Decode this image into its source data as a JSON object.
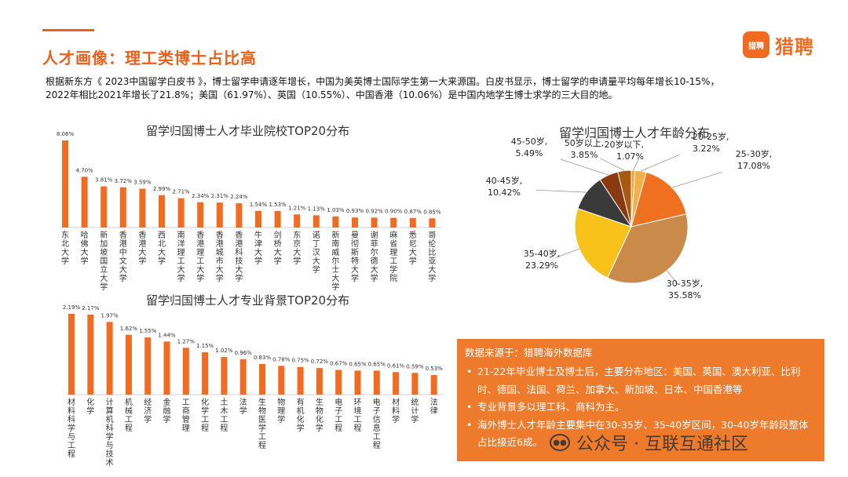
{
  "header": {
    "title": "人才画像：理工类博士占比高",
    "logo_badge": "猎聘",
    "logo_text": "猎聘"
  },
  "intro": {
    "line1": "根据新东方《 2023中国留学白皮书 》，博士留学申请逐年增长，中国为美英博士国际学生第一大来源国。白皮书显示，博士留学的申请量平均每年增长10-15%，",
    "line2": "2022年相比2021年增长了21.8%；美国（61.97%）、英国（10.55%）、中国香港（10.06%）是中国内地学生博士求学的三大目的地。"
  },
  "info_box": {
    "source": "数据来源于：猎聘海外数据库",
    "bullets": [
      "21-22年毕业博士及博士后，主要分布地区：美国、英国、澳大利亚、比利时、德国、法国、荷兰、加拿大、新加坡、日本、中国香港等",
      "专业背景多以理工科、商科为主。",
      "海外博士人才年龄主要集中在30-35岁、35-40岁区间，30-40岁年龄段整体占比接近6成。"
    ]
  },
  "watermark": {
    "icon": "wechat-icon",
    "text": "公众号 · 互联互通社区"
  },
  "colors": {
    "accent": "#e8601c",
    "bar": "#f26b21",
    "box": "#ee7a2c"
  },
  "chart_data": [
    {
      "type": "bar",
      "title": "留学归国博士人才毕业院校TOP20分布",
      "categories": [
        "东北大学",
        "哈佛大学",
        "新加坡国立大学",
        "香港中文大学",
        "香港大学",
        "西北大学",
        "南洋理工大学",
        "香港理工大学",
        "香港城市大学",
        "香港科技大学",
        "牛津大学",
        "剑桥大学",
        "东京大学",
        "诺丁汉大学",
        "新南威尔士大学",
        "曼彻斯特大学",
        "谢菲尔德大学",
        "麻省理工学院",
        "悉尼大学",
        "哥伦比亚大学"
      ],
      "values": [
        8.06,
        4.7,
        3.81,
        3.72,
        3.59,
        2.99,
        2.71,
        2.34,
        2.31,
        2.24,
        1.54,
        1.53,
        1.21,
        1.13,
        1.03,
        0.93,
        0.92,
        0.9,
        0.87,
        0.85
      ],
      "labels": [
        "8.06%",
        "4.70%",
        "3.81%",
        "3.72%",
        "3.59%",
        "2.99%",
        "2.71%",
        "2.34%",
        "2.31%",
        "2.24%",
        "1.54%",
        "1.53%",
        "1.21%",
        "1.13%",
        "1.03%",
        "0.93%",
        "0.92%",
        "0.90%",
        "0.87%",
        "0.85%"
      ],
      "ylim": [
        0,
        8.06
      ]
    },
    {
      "type": "bar",
      "title": "留学归国博士人才专业背景TOP20分布",
      "categories": [
        "材料科学与工程",
        "化学",
        "计算机科学与技术",
        "机械工程",
        "经济学",
        "金融学",
        "工商管理",
        "化学工程",
        "土木工程",
        "法学",
        "生物医学工程",
        "物理学",
        "有机化学",
        "生物化学",
        "电子工程",
        "环境工程",
        "电子信息工程",
        "材料学",
        "统计学",
        "法律"
      ],
      "values": [
        2.19,
        2.17,
        1.97,
        1.62,
        1.55,
        1.44,
        1.27,
        1.15,
        1.02,
        0.96,
        0.83,
        0.78,
        0.75,
        0.72,
        0.67,
        0.65,
        0.65,
        0.61,
        0.59,
        0.53
      ],
      "labels": [
        "2.19%",
        "2.17%",
        "1.97%",
        "1.62%",
        "1.55%",
        "1.44%",
        "1.27%",
        "1.15%",
        "1.02%",
        "0.96%",
        "0.83%",
        "0.78%",
        "0.75%",
        "0.72%",
        "0.67%",
        "0.65%",
        "0.65%",
        "0.61%",
        "0.59%",
        "0.53%"
      ],
      "ylim": [
        0,
        2.19
      ]
    },
    {
      "type": "pie",
      "title": "留学归国博士人才年龄分布",
      "slices": [
        {
          "name": "20岁以下,",
          "value": 1.07,
          "label": "1.07%",
          "color": "#f4a234"
        },
        {
          "name": "20-25岁,",
          "value": 3.22,
          "label": "3.22%",
          "color": "#f2b04a"
        },
        {
          "name": "25-30岁,",
          "value": 17.08,
          "label": "17.08%",
          "color": "#ee7020"
        },
        {
          "name": "30-35岁,",
          "value": 35.58,
          "label": "35.58%",
          "color": "#c98a4a"
        },
        {
          "name": "35-40岁,",
          "value": 23.29,
          "label": "23.29%",
          "color": "#f8c21a"
        },
        {
          "name": "40-45岁,",
          "value": 10.42,
          "label": "10.42%",
          "color": "#3a3a3a"
        },
        {
          "name": "45-50岁,",
          "value": 5.49,
          "label": "5.49%",
          "color": "#8a3a10"
        },
        {
          "name": "50岁以上,",
          "value": 3.85,
          "label": "3.85%",
          "color": "#a85a10"
        }
      ]
    }
  ]
}
